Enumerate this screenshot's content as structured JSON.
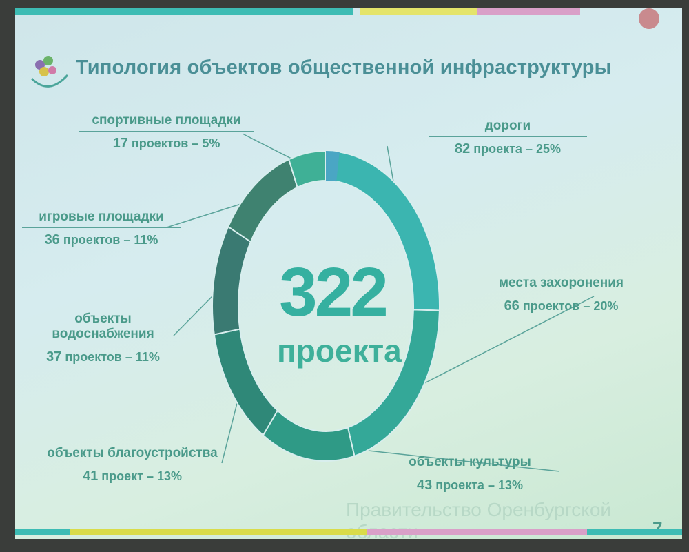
{
  "title": "Типология объектов общественной инфраструктуры",
  "footer": "Правительство Оренбургской области",
  "page_number": "7",
  "chart_data": {
    "type": "pie",
    "donut": true,
    "total_value": "322",
    "total_unit": "проекта",
    "slices": [
      {
        "label": "дороги",
        "value": 82,
        "percent": 25,
        "unit": "проекта",
        "color": "#3bb5b0"
      },
      {
        "label": "места захоронения",
        "value": 66,
        "percent": 20,
        "unit": "проектов",
        "color": "#34a898"
      },
      {
        "label": "объекты культуры",
        "value": 43,
        "percent": 13,
        "unit": "проекта",
        "color": "#2f9a86"
      },
      {
        "label": "объекты благоустройства",
        "value": 41,
        "percent": 13,
        "unit": "проект",
        "color": "#2f8878"
      },
      {
        "label": "объекты водоснабжения",
        "value": 37,
        "percent": 11,
        "unit": "проектов",
        "color": "#3a7a72"
      },
      {
        "label": "игровые площадки",
        "value": 36,
        "percent": 11,
        "unit": "проектов",
        "color": "#3f8270"
      },
      {
        "label": "спортивные площадки",
        "value": 17,
        "percent": 5,
        "unit": "проектов",
        "color": "#3fb096"
      }
    ]
  },
  "colors": {
    "accent": "#4a9a8a",
    "bar_teal": "#3dbcb4",
    "bar_yellow": "#d9dc4a",
    "bar_pink": "#d9a0c8"
  }
}
